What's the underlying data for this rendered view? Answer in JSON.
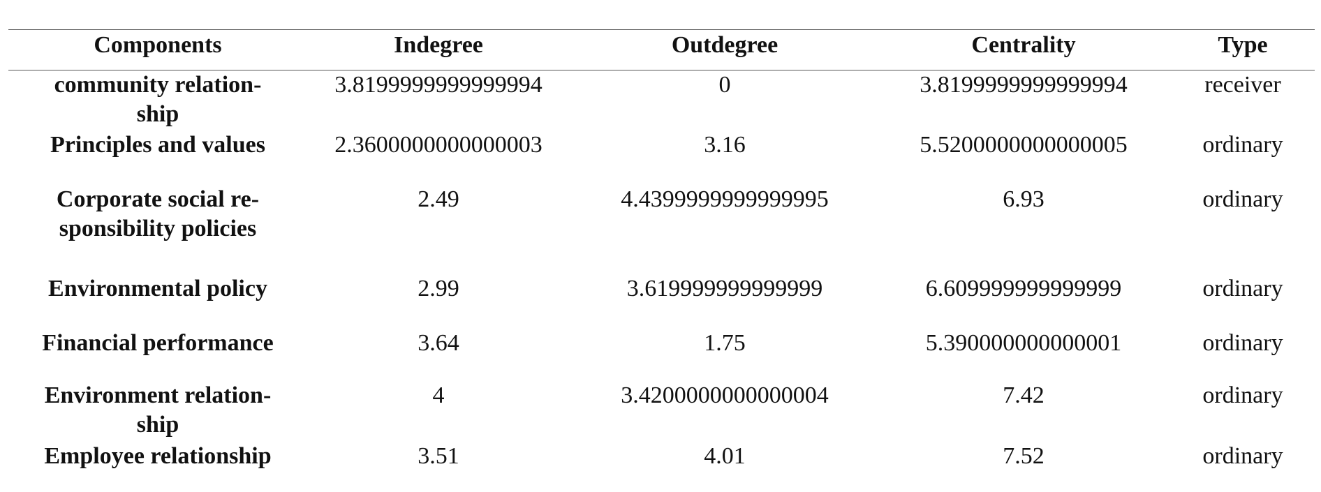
{
  "table": {
    "columns": [
      "Components",
      "Indegree",
      "Outdegree",
      "Centrality",
      "Type"
    ],
    "rows": [
      [
        "community relation-\nship",
        "3.8199999999999994",
        "0",
        "3.8199999999999994",
        "receiver"
      ],
      [
        "Principles and values",
        "2.3600000000000003",
        "3.16",
        "5.5200000000000005",
        "ordinary"
      ],
      [
        "Corporate social re-\nsponsibility policies",
        "2.49",
        "4.4399999999999995",
        "6.93",
        "ordinary"
      ],
      [
        "Environmental policy",
        "2.99",
        "3.619999999999999",
        "6.609999999999999",
        "ordinary"
      ],
      [
        "Financial performance",
        "3.64",
        "1.75",
        "5.390000000000001",
        "ordinary"
      ],
      [
        "Environment relation-\nship",
        "4",
        "3.4200000000000004",
        "7.42",
        "ordinary"
      ],
      [
        "Employee relationship",
        "3.51",
        "4.01",
        "7.52",
        "ordinary"
      ]
    ]
  }
}
